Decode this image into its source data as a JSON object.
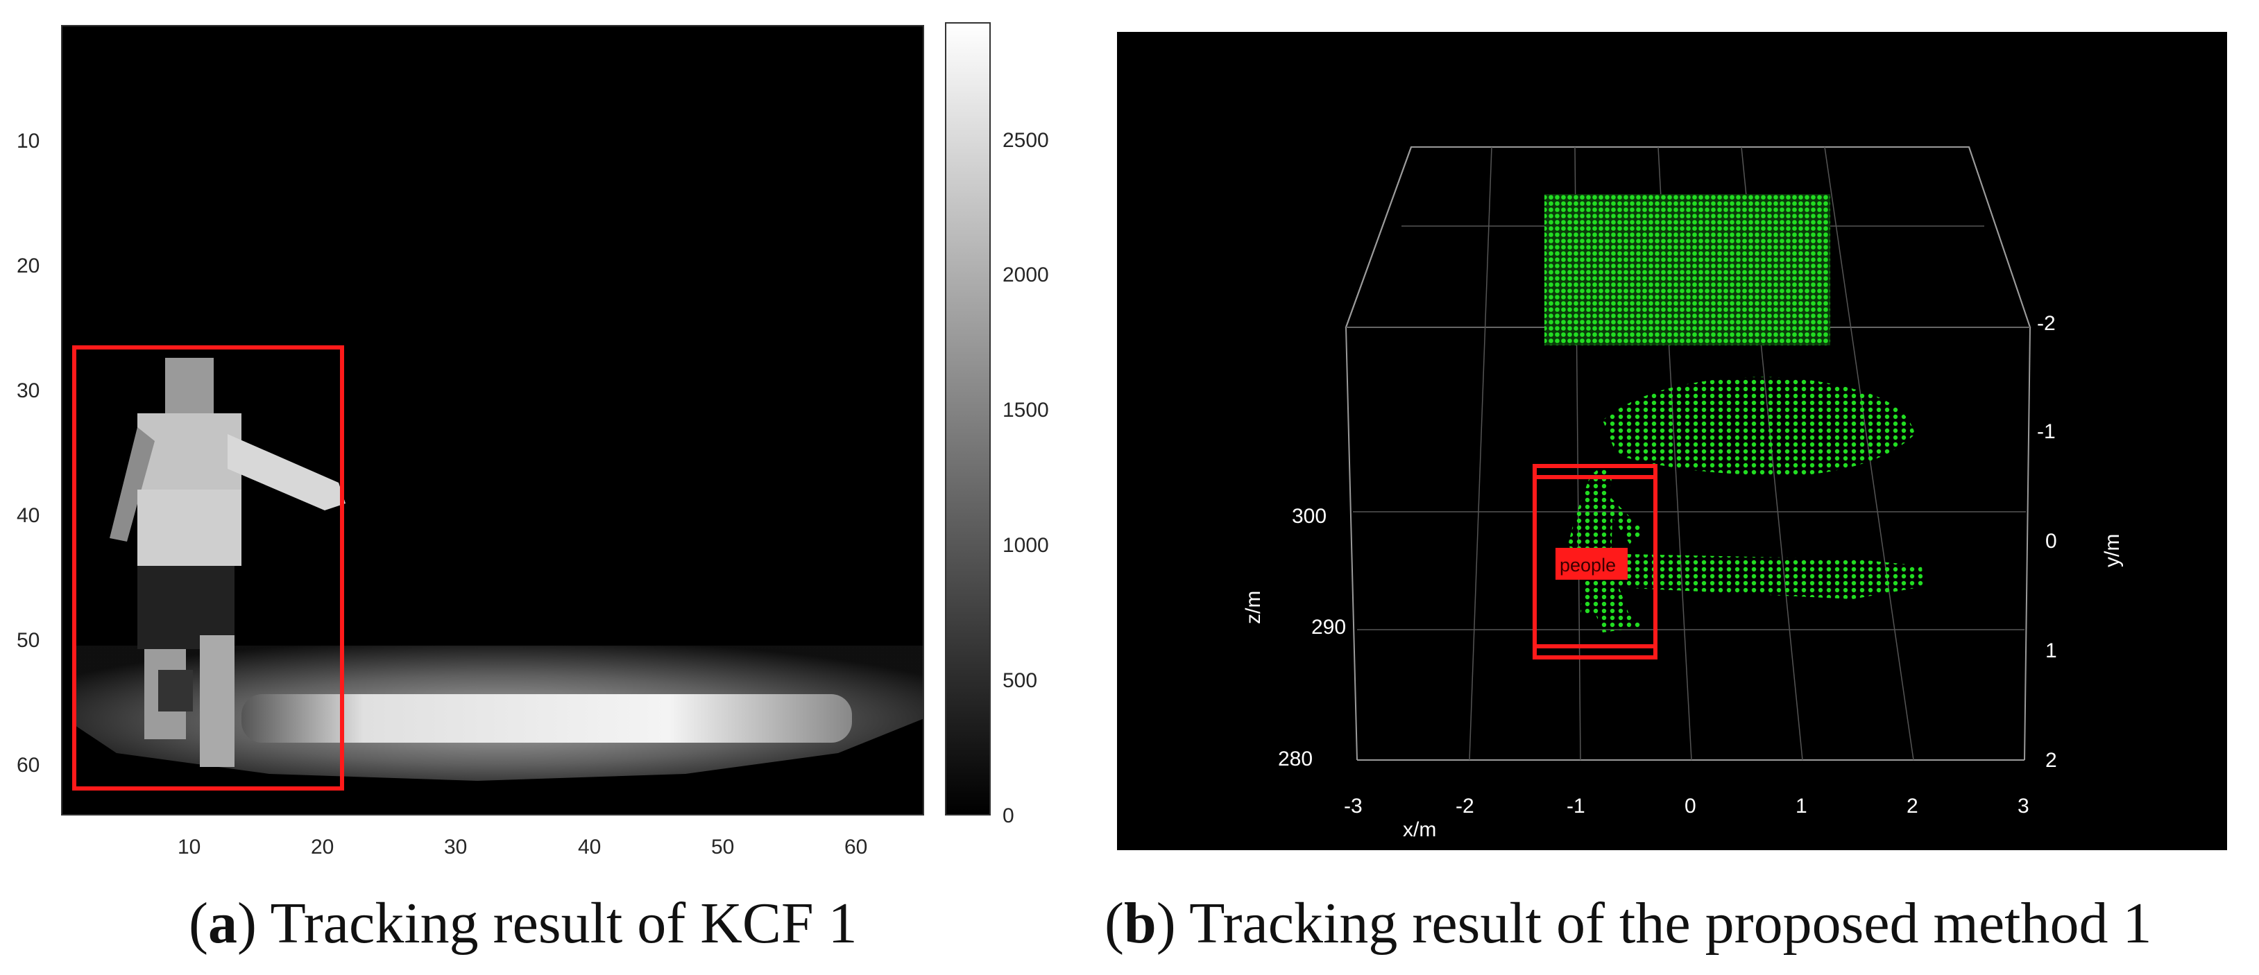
{
  "panel_a": {
    "caption": {
      "open": "(",
      "letter": "a",
      "rest": ") Tracking result of KCF 1"
    },
    "x_ticks": [
      "10",
      "20",
      "30",
      "40",
      "50",
      "60"
    ],
    "y_ticks": [
      "10",
      "20",
      "30",
      "40",
      "50",
      "60"
    ],
    "colorbar_ticks": [
      "2500",
      "2000",
      "1500",
      "1000",
      "500",
      "0"
    ],
    "colors": {
      "background": "#000000",
      "box": "#ff1a1a"
    },
    "chart_data": {
      "type": "heatmap",
      "title": "",
      "xlabel": "",
      "ylabel": "",
      "xlim": [
        1,
        64
      ],
      "ylim": [
        64,
        1
      ],
      "colorbar_range": [
        0,
        2900
      ],
      "colormap": "gray",
      "tracking_box": {
        "x": [
          1.5,
          21.5
        ],
        "y": [
          26.5,
          62
        ]
      },
      "regions": [
        {
          "name": "floor",
          "x": [
            2,
            64
          ],
          "y": [
            50,
            64
          ],
          "value": 1200
        },
        {
          "name": "bright strip",
          "x": [
            10,
            58
          ],
          "y": [
            54,
            58
          ],
          "value": 2600
        },
        {
          "name": "torso",
          "x": [
            6,
            15
          ],
          "y": [
            31,
            40
          ],
          "value": 2000
        },
        {
          "name": "head",
          "x": [
            9,
            13
          ],
          "y": [
            27,
            31
          ],
          "value": 1800
        },
        {
          "name": "arm",
          "x": [
            13,
            22
          ],
          "y": [
            36,
            42
          ],
          "value": 2200
        }
      ]
    }
  },
  "panel_b": {
    "caption": {
      "open": "(",
      "letter": "b",
      "rest": ") Tracking result of the proposed method 1"
    },
    "x_ticks": [
      "-3",
      "-2",
      "-1",
      "0",
      "1",
      "2",
      "3"
    ],
    "x_label": "x/m",
    "z_ticks": [
      "300",
      "290",
      "280"
    ],
    "z_label": "z/m",
    "y_ticks": [
      "-2",
      "-1",
      "0",
      "1",
      "2"
    ],
    "y_label": "y/m",
    "tag": "people",
    "colors": {
      "points": "#22dd22",
      "box": "#ff1a1a",
      "background": "#000000",
      "axis": "#9a9a9a"
    },
    "chart_data": {
      "type": "scatter",
      "title": "",
      "xlabel": "x/m",
      "ylabel": "y/m",
      "zlabel": "z/m",
      "xlim": [
        -3,
        3
      ],
      "ylim": [
        2,
        -2
      ],
      "zlim": [
        280,
        300
      ],
      "series": [
        {
          "clusters": [
            {
              "name": "wall",
              "x": [
                -1.4,
                1.4
              ],
              "y": [
                -2.6,
                -1.9
              ]
            },
            {
              "name": "mid structure",
              "x": [
                -0.9,
                1.4
              ],
              "y": [
                -1.3,
                -0.8
              ]
            },
            {
              "name": "floor strip",
              "x": [
                -0.4,
                1.5
              ],
              "y": [
                0.2,
                0.4
              ]
            },
            {
              "name": "person",
              "x": [
                -1.3,
                -0.7
              ],
              "y": [
                -0.6,
                0.8
              ]
            }
          ]
        }
      ],
      "detection_box": {
        "label": "people"
      }
    }
  }
}
